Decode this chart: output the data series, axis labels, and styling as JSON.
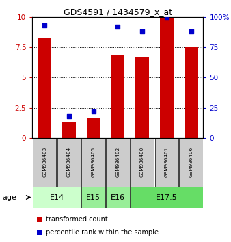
{
  "title": "GDS4591 / 1434579_x_at",
  "samples": [
    "GSM936403",
    "GSM936404",
    "GSM936405",
    "GSM936402",
    "GSM936400",
    "GSM936401",
    "GSM936406"
  ],
  "transformed_count": [
    8.3,
    1.3,
    1.7,
    6.9,
    6.7,
    10.0,
    7.5
  ],
  "percentile_rank": [
    93,
    18,
    22,
    92,
    88,
    100,
    88
  ],
  "age_groups": [
    {
      "label": "E14",
      "samples": [
        0,
        1
      ],
      "color": "#ccffcc"
    },
    {
      "label": "E15",
      "samples": [
        2
      ],
      "color": "#99ee99"
    },
    {
      "label": "E16",
      "samples": [
        3
      ],
      "color": "#99ee99"
    },
    {
      "label": "E17.5",
      "samples": [
        4,
        5,
        6
      ],
      "color": "#66dd66"
    }
  ],
  "bar_color": "#cc0000",
  "dot_color": "#0000cc",
  "ylim_left": [
    0,
    10
  ],
  "ylim_right": [
    0,
    100
  ],
  "yticks_left": [
    0,
    2.5,
    5,
    7.5,
    10
  ],
  "yticks_right": [
    0,
    25,
    50,
    75,
    100
  ],
  "ytick_labels_left": [
    "0",
    "2.5",
    "5",
    "7.5",
    "10"
  ],
  "ytick_labels_right": [
    "0",
    "25",
    "50",
    "75",
    "100%"
  ],
  "left_axis_color": "#cc0000",
  "right_axis_color": "#0000cc",
  "sample_box_color": "#cccccc",
  "age_label": "age",
  "legend_items": [
    {
      "label": "transformed count",
      "color": "#cc0000"
    },
    {
      "label": "percentile rank within the sample",
      "color": "#0000cc"
    }
  ]
}
